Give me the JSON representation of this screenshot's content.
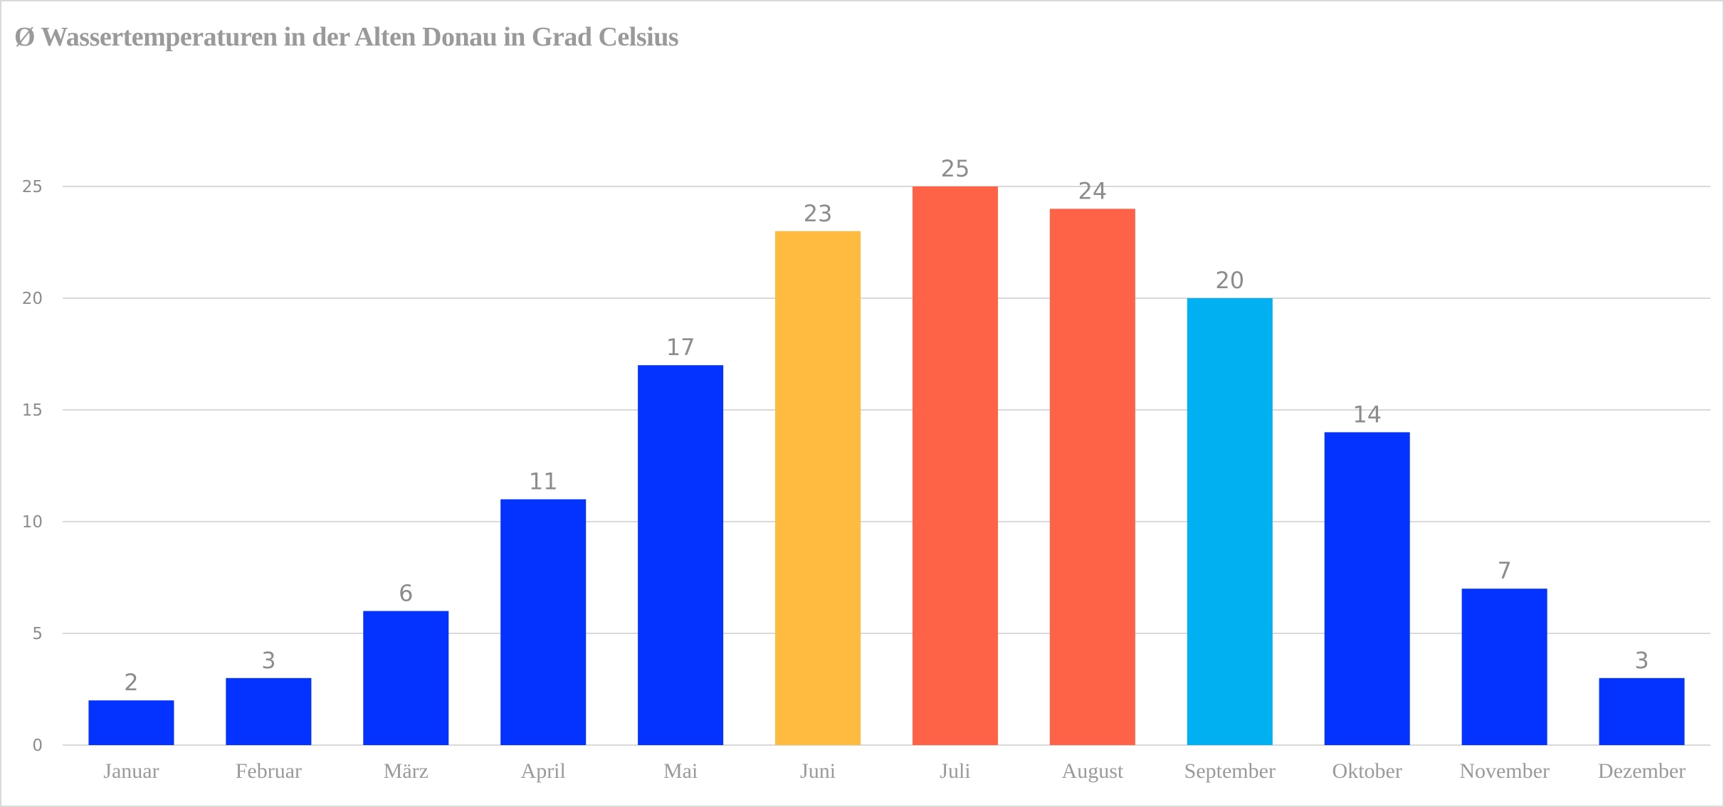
{
  "chart_data": {
    "type": "bar",
    "title": "Ø Wassertemperaturen in der Alten Donau in Grad Celsius",
    "xlabel": "",
    "ylabel": "",
    "ylim": [
      0,
      25
    ],
    "yticks": [
      0,
      5,
      10,
      15,
      20,
      25
    ],
    "grid": true,
    "legend": "none",
    "categories": [
      "Januar",
      "Februar",
      "März",
      "April",
      "Mai",
      "Juni",
      "Juli",
      "August",
      "September",
      "Oktober",
      "November",
      "Dezember"
    ],
    "values": [
      2,
      3,
      6,
      11,
      17,
      23,
      25,
      24,
      20,
      14,
      7,
      3
    ],
    "colors": [
      "#0433FF",
      "#0433FF",
      "#0433FF",
      "#0433FF",
      "#0433FF",
      "#FFBA40",
      "#FF6347",
      "#FF6347",
      "#00B0F0",
      "#0433FF",
      "#0433FF",
      "#0433FF"
    ]
  }
}
